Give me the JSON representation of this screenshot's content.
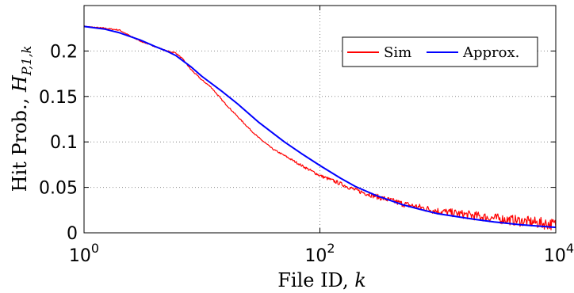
{
  "chart_data": {
    "type": "line",
    "xscale": "log",
    "xlim": [
      1,
      10000
    ],
    "ylim": [
      0,
      0.25
    ],
    "x_ticks": [
      {
        "value": 1,
        "base": "10",
        "exp": "0"
      },
      {
        "value": 100,
        "base": "10",
        "exp": "2"
      },
      {
        "value": 10000,
        "base": "10",
        "exp": "4"
      }
    ],
    "y_ticks": [
      {
        "value": 0,
        "label": "0"
      },
      {
        "value": 0.05,
        "label": "0.05"
      },
      {
        "value": 0.1,
        "label": "0.1"
      },
      {
        "value": 0.15,
        "label": "0.15"
      },
      {
        "value": 0.2,
        "label": "0.2"
      }
    ],
    "xlabel": {
      "text": "File ID, ",
      "var": "k"
    },
    "ylabel": {
      "text": "Hit Prob., ",
      "var": "H",
      "sub": "P,1,k"
    },
    "grid": "dotted",
    "legend_position": "top-right",
    "series": [
      {
        "name": "Sim",
        "color": "#ff0000",
        "noisy": true,
        "x": [
          1,
          1.5,
          2,
          2.5,
          3,
          4,
          5,
          6,
          7,
          8,
          10,
          12,
          15,
          20,
          25,
          30,
          40,
          50,
          70,
          100,
          150,
          200,
          300,
          500,
          700,
          1000,
          1500,
          2000,
          3000,
          5000,
          7000,
          10000
        ],
        "y": [
          0.227,
          0.225,
          0.223,
          0.216,
          0.211,
          0.205,
          0.2,
          0.198,
          0.19,
          0.18,
          0.168,
          0.16,
          0.145,
          0.128,
          0.115,
          0.105,
          0.092,
          0.085,
          0.074,
          0.063,
          0.054,
          0.047,
          0.04,
          0.032,
          0.028,
          0.024,
          0.021,
          0.019,
          0.016,
          0.013,
          0.011,
          0.009
        ]
      },
      {
        "name": "Approx.",
        "color": "#0000ff",
        "noisy": false,
        "x": [
          1,
          1.5,
          2,
          3,
          4,
          5,
          6,
          8,
          10,
          15,
          20,
          30,
          50,
          70,
          100,
          150,
          200,
          300,
          500,
          700,
          1000,
          2000,
          3000,
          5000,
          10000
        ],
        "y": [
          0.227,
          0.224,
          0.22,
          0.212,
          0.205,
          0.2,
          0.195,
          0.183,
          0.172,
          0.155,
          0.142,
          0.122,
          0.1,
          0.087,
          0.074,
          0.06,
          0.051,
          0.041,
          0.031,
          0.026,
          0.021,
          0.015,
          0.012,
          0.009,
          0.006
        ]
      }
    ]
  }
}
